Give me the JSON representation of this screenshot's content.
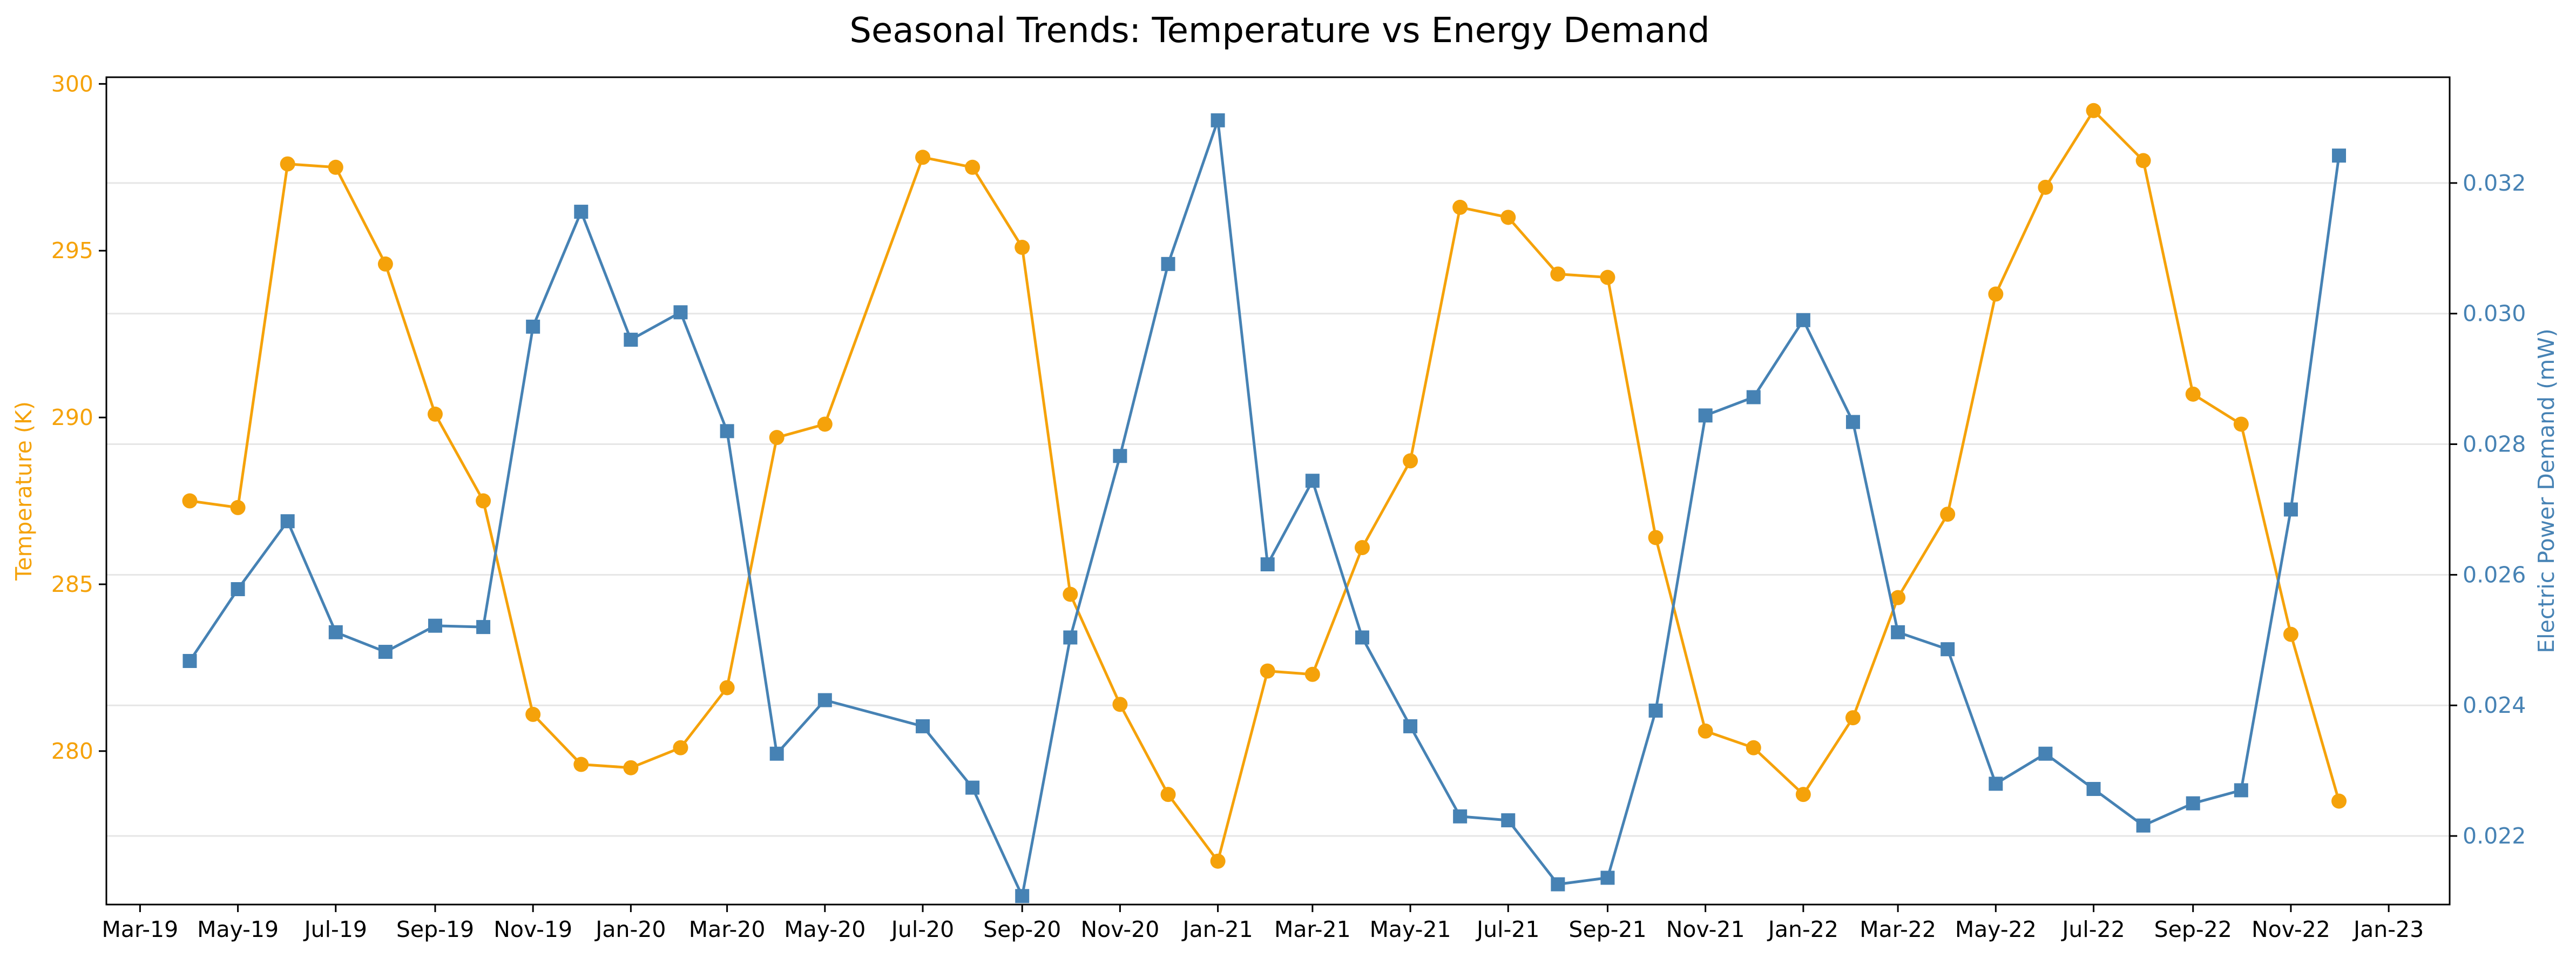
{
  "chart_data": {
    "type": "line",
    "title": "Seasonal Trends: Temperature vs Energy Demand",
    "xlabel": "",
    "ylabel_left": "Temperature (K)",
    "ylabel_right": "Electric Power Demand (mW)",
    "x_range": [
      "2019-02-08",
      "2023-02-08"
    ],
    "x_ticks": [
      {
        "date": "2019-03-01",
        "label": "Mar-19"
      },
      {
        "date": "2019-05-01",
        "label": "May-19"
      },
      {
        "date": "2019-07-01",
        "label": "Jul-19"
      },
      {
        "date": "2019-09-01",
        "label": "Sep-19"
      },
      {
        "date": "2019-11-01",
        "label": "Nov-19"
      },
      {
        "date": "2020-01-01",
        "label": "Jan-20"
      },
      {
        "date": "2020-03-01",
        "label": "Mar-20"
      },
      {
        "date": "2020-05-01",
        "label": "May-20"
      },
      {
        "date": "2020-07-01",
        "label": "Jul-20"
      },
      {
        "date": "2020-09-01",
        "label": "Sep-20"
      },
      {
        "date": "2020-11-01",
        "label": "Nov-20"
      },
      {
        "date": "2021-01-01",
        "label": "Jan-21"
      },
      {
        "date": "2021-03-01",
        "label": "Mar-21"
      },
      {
        "date": "2021-05-01",
        "label": "May-21"
      },
      {
        "date": "2021-07-01",
        "label": "Jul-21"
      },
      {
        "date": "2021-09-01",
        "label": "Sep-21"
      },
      {
        "date": "2021-11-01",
        "label": "Nov-21"
      },
      {
        "date": "2022-01-01",
        "label": "Jan-22"
      },
      {
        "date": "2022-03-01",
        "label": "Mar-22"
      },
      {
        "date": "2022-05-01",
        "label": "May-22"
      },
      {
        "date": "2022-07-01",
        "label": "Jul-22"
      },
      {
        "date": "2022-09-01",
        "label": "Sep-22"
      },
      {
        "date": "2022-11-01",
        "label": "Nov-22"
      },
      {
        "date": "2023-01-01",
        "label": "Jan-23"
      }
    ],
    "y_left": {
      "range": [
        275.4,
        300.2
      ],
      "ticks": [
        280,
        285,
        290,
        295,
        300
      ]
    },
    "y_right": {
      "range": [
        0.02095,
        0.03362
      ],
      "ticks": [
        0.022,
        0.024,
        0.026,
        0.028,
        0.03,
        0.032
      ],
      "tick_labels": [
        "0.022",
        "0.024",
        "0.026",
        "0.028",
        "0.030",
        "0.032"
      ]
    },
    "grid": "horizontal (right axis)",
    "colors": {
      "temperature": "#f5a20a",
      "demand": "#4682b4",
      "grid": "#e6e6e6"
    },
    "series": [
      {
        "axis": "left",
        "marker": "circle",
        "points": [
          [
            "2019-04-01",
            287.5
          ],
          [
            "2019-05-01",
            287.3
          ],
          [
            "2019-06-01",
            297.6
          ],
          [
            "2019-07-01",
            297.5
          ],
          [
            "2019-08-01",
            294.6
          ],
          [
            "2019-09-01",
            290.1
          ],
          [
            "2019-10-01",
            287.5
          ],
          [
            "2019-11-01",
            281.1
          ],
          [
            "2019-12-01",
            279.6
          ],
          [
            "2020-01-01",
            279.5
          ],
          [
            "2020-02-01",
            280.1
          ],
          [
            "2020-03-01",
            281.9
          ],
          [
            "2020-04-01",
            289.4
          ],
          [
            "2020-05-01",
            289.8
          ],
          [
            "2020-07-01",
            297.8
          ],
          [
            "2020-08-01",
            297.5
          ],
          [
            "2020-09-01",
            295.1
          ],
          [
            "2020-10-01",
            284.7
          ],
          [
            "2020-11-01",
            281.4
          ],
          [
            "2020-12-01",
            278.7
          ],
          [
            "2021-01-01",
            276.7
          ],
          [
            "2021-02-01",
            282.4
          ],
          [
            "2021-03-01",
            282.3
          ],
          [
            "2021-04-01",
            286.1
          ],
          [
            "2021-05-01",
            288.7
          ],
          [
            "2021-06-01",
            296.3
          ],
          [
            "2021-07-01",
            296.0
          ],
          [
            "2021-08-01",
            294.3
          ],
          [
            "2021-09-01",
            294.2
          ],
          [
            "2021-10-01",
            286.4
          ],
          [
            "2021-11-01",
            280.6
          ],
          [
            "2021-12-01",
            280.1
          ],
          [
            "2022-01-01",
            278.7
          ],
          [
            "2022-02-01",
            281.0
          ],
          [
            "2022-03-01",
            284.6
          ],
          [
            "2022-04-01",
            287.1
          ],
          [
            "2022-05-01",
            293.7
          ],
          [
            "2022-06-01",
            296.9
          ],
          [
            "2022-07-01",
            299.2
          ],
          [
            "2022-08-01",
            297.7
          ],
          [
            "2022-09-01",
            290.7
          ],
          [
            "2022-10-01",
            289.8
          ],
          [
            "2022-11-01",
            283.5
          ],
          [
            "2022-12-01",
            278.5
          ]
        ]
      },
      {
        "axis": "right",
        "marker": "square",
        "points": [
          [
            "2019-04-01",
            0.02468
          ],
          [
            "2019-05-01",
            0.02578
          ],
          [
            "2019-06-01",
            0.02682
          ],
          [
            "2019-07-01",
            0.02512
          ],
          [
            "2019-08-01",
            0.02482
          ],
          [
            "2019-09-01",
            0.02522
          ],
          [
            "2019-10-01",
            0.0252
          ],
          [
            "2019-11-01",
            0.0298
          ],
          [
            "2019-12-01",
            0.03156
          ],
          [
            "2020-01-01",
            0.0296
          ],
          [
            "2020-02-01",
            0.03002
          ],
          [
            "2020-03-01",
            0.0282
          ],
          [
            "2020-04-01",
            0.02326
          ],
          [
            "2020-05-01",
            0.02408
          ],
          [
            "2020-07-01",
            0.02368
          ],
          [
            "2020-08-01",
            0.02274
          ],
          [
            "2020-09-01",
            0.02108
          ],
          [
            "2020-10-01",
            0.02504
          ],
          [
            "2020-11-01",
            0.02782
          ],
          [
            "2020-12-01",
            0.03076
          ],
          [
            "2021-01-01",
            0.03296
          ],
          [
            "2021-02-01",
            0.02616
          ],
          [
            "2021-03-01",
            0.02744
          ],
          [
            "2021-04-01",
            0.02504
          ],
          [
            "2021-05-01",
            0.02368
          ],
          [
            "2021-06-01",
            0.0223
          ],
          [
            "2021-07-01",
            0.02224
          ],
          [
            "2021-08-01",
            0.02126
          ],
          [
            "2021-09-01",
            0.02136
          ],
          [
            "2021-10-01",
            0.02392
          ],
          [
            "2021-11-01",
            0.02844
          ],
          [
            "2021-12-01",
            0.02872
          ],
          [
            "2022-01-01",
            0.0299
          ],
          [
            "2022-02-01",
            0.02834
          ],
          [
            "2022-03-01",
            0.02512
          ],
          [
            "2022-04-01",
            0.02486
          ],
          [
            "2022-05-01",
            0.0228
          ],
          [
            "2022-06-01",
            0.02326
          ],
          [
            "2022-07-01",
            0.02272
          ],
          [
            "2022-08-01",
            0.02216
          ],
          [
            "2022-09-01",
            0.0225
          ],
          [
            "2022-10-01",
            0.0227
          ],
          [
            "2022-11-01",
            0.027
          ],
          [
            "2022-12-01",
            0.03242
          ]
        ]
      }
    ]
  }
}
